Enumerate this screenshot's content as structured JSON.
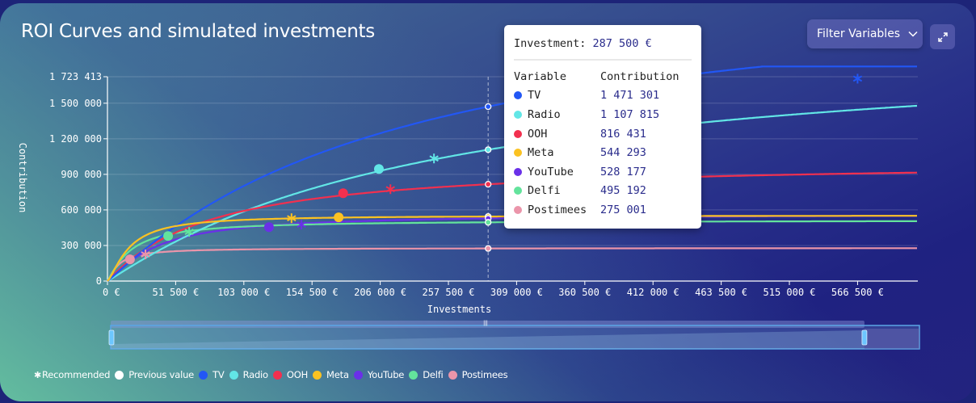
{
  "header": {
    "title": "ROI Curves and simulated investments",
    "filter_label": "Filter Variables",
    "filter_icon": "chevron-down-icon",
    "expand_icon": "expand-icon"
  },
  "tooltip": {
    "investment_label": "Investment:",
    "investment_value": "287 500 €",
    "col_variable": "Variable",
    "col_contribution": "Contribution",
    "rows": [
      {
        "name": "TV",
        "value": "1 471 301",
        "color": "#2257f5"
      },
      {
        "name": "Radio",
        "value": "1 107 815",
        "color": "#62e6e6"
      },
      {
        "name": "OOH",
        "value": "816 431",
        "color": "#f2304f"
      },
      {
        "name": "Meta",
        "value": "544 293",
        "color": "#fbc222"
      },
      {
        "name": "YouTube",
        "value": "528 177",
        "color": "#6a30e8"
      },
      {
        "name": "Delfi",
        "value": "495 192",
        "color": "#63e39c"
      },
      {
        "name": "Postimees",
        "value": "275 001",
        "color": "#eb95aa"
      }
    ]
  },
  "legend": {
    "recommended": "Recommended",
    "previous": "Previous value",
    "items": [
      "TV",
      "Radio",
      "OOH",
      "Meta",
      "YouTube",
      "Delfi",
      "Postimees"
    ]
  },
  "chart_data": {
    "type": "line",
    "title": "ROI Curves and simulated investments",
    "xlabel": "Investments",
    "ylabel": "Contribution",
    "xlim": [
      0,
      612000
    ],
    "ylim": [
      0,
      1723413
    ],
    "x_ticks": [
      0,
      51500,
      103000,
      154500,
      206000,
      257500,
      309000,
      360500,
      412000,
      463500,
      515000,
      566500
    ],
    "x_tick_labels": [
      "0 €",
      "51 500 €",
      "103 000 €",
      "154 500 €",
      "206 000 €",
      "257 500 €",
      "309 000 €",
      "360 500 €",
      "412 000 €",
      "463 500 €",
      "515 000 €",
      "566 500 €"
    ],
    "y_ticks": [
      0,
      300000,
      600000,
      900000,
      1200000,
      1500000,
      1723413
    ],
    "y_tick_labels": [
      "0",
      "300 000",
      "600 000",
      "900 000",
      "1 200 000",
      "1 500 000",
      "1 723 413"
    ],
    "grid": true,
    "hover_x": 287500,
    "legend_position": "bottom-left",
    "series": [
      {
        "name": "TV",
        "color": "#2257f5",
        "vmax": 2600000,
        "half": 220000,
        "shape": 1.05,
        "hover_value": 1471301,
        "recommended": [
          566500,
          1707000
        ],
        "previous": null
      },
      {
        "name": "Radio",
        "color": "#62e6e6",
        "vmax": 2050000,
        "half": 245000,
        "shape": 1.05,
        "hover_value": 1107815,
        "recommended": [
          246600,
          1034000
        ],
        "previous": [
          205000,
          945000
        ]
      },
      {
        "name": "OOH",
        "color": "#f2304f",
        "vmax": 980000,
        "half": 75000,
        "shape": 1.05,
        "hover_value": 816431,
        "recommended": [
          213700,
          775000
        ],
        "previous": [
          178000,
          741000
        ]
      },
      {
        "name": "Meta",
        "color": "#fbc222",
        "vmax": 555000,
        "half": 16000,
        "shape": 1.4,
        "hover_value": 544293,
        "recommended": [
          139000,
          530000
        ],
        "previous": [
          174600,
          537000
        ]
      },
      {
        "name": "YouTube",
        "color": "#6a30e8",
        "vmax": 590000,
        "half": 35000,
        "shape": 1.25,
        "hover_value": 528177,
        "recommended": [
          146500,
          476000
        ],
        "previous": [
          122000,
          455000
        ]
      },
      {
        "name": "Delfi",
        "color": "#63e39c",
        "vmax": 515000,
        "half": 17000,
        "shape": 1.2,
        "hover_value": 495192,
        "recommended": [
          61700,
          415000
        ],
        "previous": [
          45800,
          380000
        ]
      },
      {
        "name": "Postimees",
        "color": "#eb95aa",
        "vmax": 285000,
        "half": 8500,
        "shape": 1.25,
        "hover_value": 275001,
        "recommended": [
          28700,
          225000
        ],
        "previous": [
          17000,
          183000
        ]
      }
    ],
    "zoom_range": [
      0,
      0.92
    ]
  }
}
